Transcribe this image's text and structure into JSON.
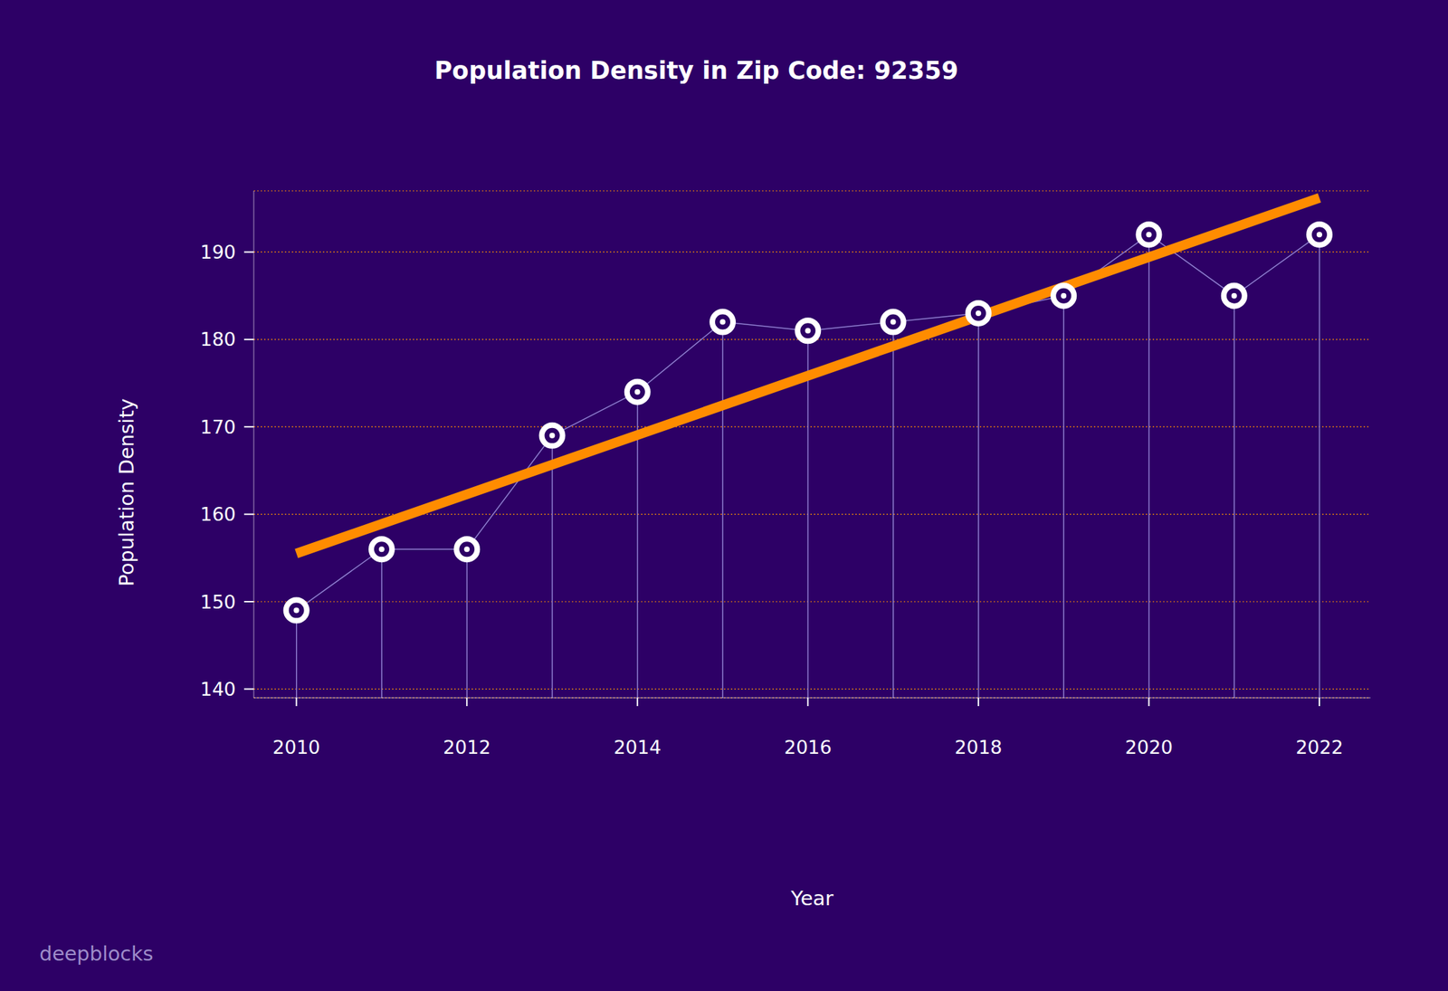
{
  "chart_data": {
    "type": "line",
    "title": "Population Density in Zip Code: 92359",
    "x_label": "Year",
    "y_label": "Population Density",
    "x": [
      2010,
      2011,
      2012,
      2013,
      2014,
      2015,
      2016,
      2017,
      2018,
      2019,
      2020,
      2021,
      2022
    ],
    "values": [
      149,
      156,
      156,
      169,
      174,
      182,
      181,
      182,
      183,
      185,
      192,
      185,
      192
    ],
    "color": "#ffffff",
    "marker": "ring",
    "trend": {
      "x": [
        2010,
        2022
      ],
      "values": [
        155.5,
        196.2
      ],
      "color": "#ff8c00"
    },
    "xlim": [
      2009.5,
      2022.6
    ],
    "xticks": [
      2010,
      2012,
      2014,
      2016,
      2018,
      2020,
      2022
    ],
    "ylim": [
      139,
      197
    ],
    "yticks": [
      140,
      150,
      160,
      170,
      180,
      190
    ],
    "grid": true,
    "watermark": "deepblocks"
  }
}
